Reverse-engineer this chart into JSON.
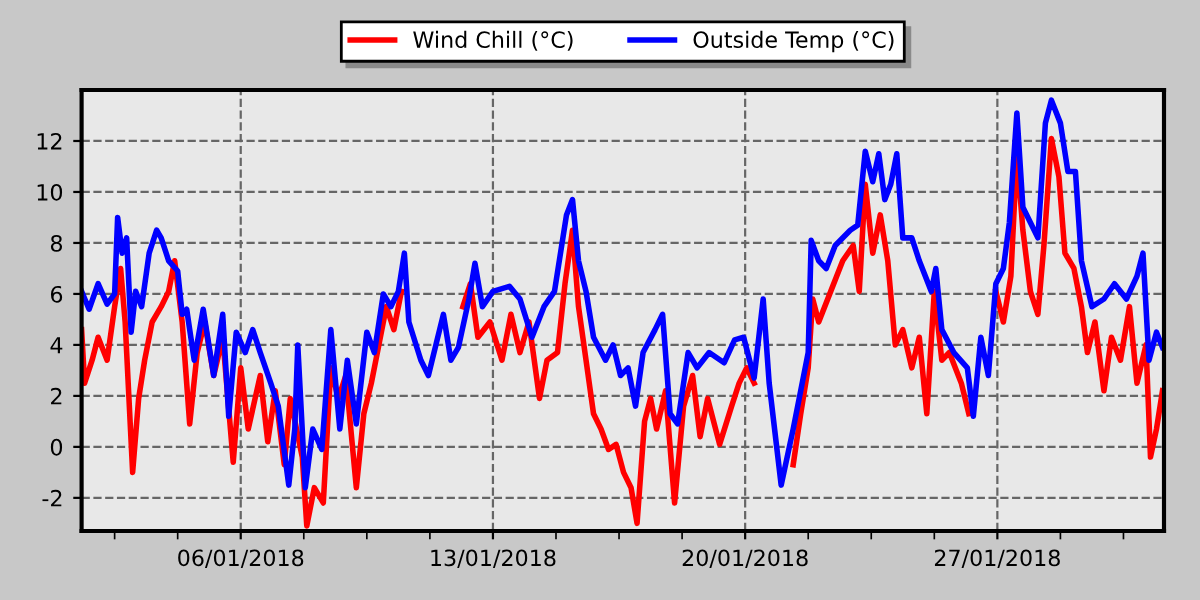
{
  "chart_data": {
    "type": "line",
    "xlim": [
      "2018-01-01T14:00",
      "2018-01-31T15:00"
    ],
    "xticks": [
      {
        "value": "2018-01-02T12:00",
        "label": null
      },
      {
        "value": "2018-01-04T06:00",
        "label": null
      },
      {
        "value": "2018-01-06",
        "label": "06/01/2018"
      },
      {
        "value": "2018-01-07T18:00",
        "label": null
      },
      {
        "value": "2018-01-09T12:00",
        "label": null
      },
      {
        "value": "2018-01-11T06:00",
        "label": null
      },
      {
        "value": "2018-01-13",
        "label": "13/01/2018"
      },
      {
        "value": "2018-01-14T18:00",
        "label": null
      },
      {
        "value": "2018-01-16T12:00",
        "label": null
      },
      {
        "value": "2018-01-18T06:00",
        "label": null
      },
      {
        "value": "2018-01-20",
        "label": "20/01/2018"
      },
      {
        "value": "2018-01-21T18:00",
        "label": null
      },
      {
        "value": "2018-01-23T12:00",
        "label": null
      },
      {
        "value": "2018-01-25T06:00",
        "label": null
      },
      {
        "value": "2018-01-27",
        "label": "27/01/2018"
      },
      {
        "value": "2018-01-28T18:00",
        "label": null
      },
      {
        "value": "2018-01-30T12:00",
        "label": null
      }
    ],
    "ylim": [
      -3.3,
      14
    ],
    "yticks": [
      -2,
      0,
      2,
      4,
      6,
      8,
      10,
      12
    ],
    "grid": true,
    "legend": "top",
    "marker": "none",
    "line_style": "solid",
    "series": [
      {
        "name": "Wind Chill (°C)",
        "color": "#ff0000",
        "x": [
          "2018-01-01T14:00",
          "2018-01-01T16:00",
          "2018-01-01T21:00",
          "2018-01-02T01:00",
          "2018-01-02T07:00",
          "2018-01-02T12:00",
          "2018-01-02T16:00",
          "2018-01-02T19:00",
          "2018-01-03T00:00",
          "2018-01-03T04:00",
          "2018-01-03T08:00",
          "2018-01-03T13:00",
          "2018-01-03T19:00",
          "2018-01-04T00:00",
          "2018-01-04T04:00",
          "2018-01-04T09:00",
          "2018-01-04T14:00",
          "2018-01-04T19:00",
          "2018-01-05T00:00",
          "2018-01-05T06:00",
          "2018-01-05T12:00",
          "2018-01-05T19:00",
          "2018-01-06T00:00",
          "2018-01-06T05:00",
          "2018-01-06T13:00",
          "2018-01-06T18:00",
          "2018-01-06T23:00",
          "2018-01-07T05:00",
          "2018-01-07T09:00",
          "2018-01-07T17:00",
          "2018-01-07T20:00",
          "2018-01-08T01:00",
          "2018-01-08T07:00",
          "2018-01-08T12:00",
          "2018-01-08T17:00",
          "2018-01-08T22:00",
          "2018-01-09T05:00",
          "2018-01-09T10:00",
          "2018-01-09T15:00",
          "2018-01-09T20:00",
          "2018-01-10T01:00",
          "2018-01-10T06:00",
          "2018-01-10T11:00",
          "2018-01-11T12:00",
          "2018-01-12T04:00",
          "2018-01-12T09:00",
          "2018-01-12T14:00",
          "2018-01-12T22:00",
          "2018-01-13T06:00",
          "2018-01-13T12:00",
          "2018-01-13T18:00",
          "2018-01-14T00:00",
          "2018-01-14T07:00",
          "2018-01-14T12:00",
          "2018-01-14T19:00",
          "2018-01-15T00:00",
          "2018-01-15T05:00",
          "2018-01-15T09:00",
          "2018-01-15T14:00",
          "2018-01-15T19:00",
          "2018-01-16T00:00",
          "2018-01-16T05:00",
          "2018-01-16T10:00",
          "2018-01-16T15:00",
          "2018-01-16T20:00",
          "2018-01-17T00:00",
          "2018-01-17T05:00",
          "2018-01-17T09:00",
          "2018-01-17T13:00",
          "2018-01-17T19:00",
          "2018-01-18T01:00",
          "2018-01-18T07:00",
          "2018-01-18T13:00",
          "2018-01-18T18:00",
          "2018-01-18T23:00",
          "2018-01-19T07:00",
          "2018-01-19T15:00",
          "2018-01-19T20:00",
          "2018-01-20T01:00",
          "2018-01-20T06:00",
          "2018-01-20T19:00",
          "2018-01-21T08:00",
          "2018-01-21T13:00",
          "2018-01-21T18:00",
          "2018-01-21T21:00",
          "2018-01-22T01:00",
          "2018-01-22T09:00",
          "2018-01-22T17:00",
          "2018-01-23T00:00",
          "2018-01-23T04:00",
          "2018-01-23T08:00",
          "2018-01-23T13:00",
          "2018-01-23T18:00",
          "2018-01-23T23:00",
          "2018-01-24T04:00",
          "2018-01-24T09:00",
          "2018-01-24T15:00",
          "2018-01-24T20:00",
          "2018-01-25T01:00",
          "2018-01-25T06:00",
          "2018-01-25T11:00",
          "2018-01-25T16:00",
          "2018-01-26T00:00",
          "2018-01-26T05:00",
          "2018-01-26T14:00",
          "2018-01-26T23:00",
          "2018-01-27T04:00",
          "2018-01-27T09:00",
          "2018-01-27T13:00",
          "2018-01-27T17:00",
          "2018-01-27T22:00",
          "2018-01-28T03:00",
          "2018-01-28T07:00",
          "2018-01-28T12:00",
          "2018-01-28T17:00",
          "2018-01-28T21:00",
          "2018-01-29T03:00",
          "2018-01-29T08:00",
          "2018-01-29T12:00",
          "2018-01-29T17:00",
          "2018-01-29T23:00",
          "2018-01-30T04:00",
          "2018-01-30T10:00",
          "2018-01-30T16:00",
          "2018-01-30T21:00",
          "2018-01-31T03:00",
          "2018-01-31T06:00",
          "2018-01-31T10:00",
          "2018-01-31T14:00"
        ],
        "values": [
          4.6,
          2.5,
          3.4,
          4.3,
          3.4,
          5.5,
          7.0,
          4.9,
          -1.0,
          1.9,
          3.4,
          4.9,
          5.5,
          6.1,
          7.3,
          4.9,
          0.9,
          3.7,
          4.9,
          2.8,
          4.3,
          -0.6,
          3.1,
          0.7,
          2.8,
          0.2,
          2.2,
          -0.7,
          1.9,
          -0.4,
          -3.1,
          -1.6,
          -2.2,
          3.1,
          1.9,
          2.8,
          -1.6,
          1.3,
          2.5,
          4.0,
          5.5,
          4.6,
          6.1,
          null,
          5.5,
          6.4,
          4.3,
          4.9,
          3.4,
          5.2,
          3.7,
          4.9,
          1.9,
          3.4,
          3.7,
          6.4,
          8.5,
          5.5,
          3.4,
          1.3,
          0.7,
          -0.1,
          0.1,
          -1.0,
          -1.6,
          -3.0,
          1.0,
          1.9,
          0.7,
          2.2,
          -2.2,
          1.6,
          2.8,
          0.4,
          1.9,
          0.1,
          1.6,
          2.5,
          3.1,
          2.5,
          null,
          -0.7,
          1.3,
          3.1,
          5.8,
          4.9,
          6.1,
          7.3,
          7.9,
          6.1,
          10.3,
          7.6,
          9.1,
          7.3,
          4.0,
          4.6,
          3.1,
          4.3,
          1.3,
          6.1,
          3.4,
          3.7,
          2.5,
          1.3,
          null,
          6.1,
          4.9,
          6.7,
          11.5,
          8.5,
          6.1,
          5.2,
          7.9,
          12.1,
          10.6,
          7.6,
          7.0,
          5.5,
          3.7,
          4.9,
          2.2,
          4.3,
          3.4,
          5.5,
          2.5,
          4.0,
          -0.4,
          0.7,
          2.2
        ]
      },
      {
        "name": "Outside Temp (°C)",
        "color": "#0000ff",
        "x": [
          "2018-01-01T14:00",
          "2018-01-01T19:00",
          "2018-01-02T01:00",
          "2018-01-02T07:00",
          "2018-01-02T12:00",
          "2018-01-02T14:00",
          "2018-01-02T17:00",
          "2018-01-02T20:00",
          "2018-01-02T23:00",
          "2018-01-03T02:00",
          "2018-01-03T06:00",
          "2018-01-03T11:00",
          "2018-01-03T16:00",
          "2018-01-03T19:00",
          "2018-01-04T00:00",
          "2018-01-04T06:00",
          "2018-01-04T09:00",
          "2018-01-04T12:00",
          "2018-01-04T17:00",
          "2018-01-04T23:00",
          "2018-01-05T06:00",
          "2018-01-05T12:00",
          "2018-01-05T16:00",
          "2018-01-05T21:00",
          "2018-01-06T03:00",
          "2018-01-06T08:00",
          "2018-01-06T13:00",
          "2018-01-06T20:00",
          "2018-01-07T01:00",
          "2018-01-07T08:00",
          "2018-01-07T12:00",
          "2018-01-07T14:00",
          "2018-01-07T19:00",
          "2018-01-08T00:00",
          "2018-01-08T06:00",
          "2018-01-08T12:00",
          "2018-01-08T18:00",
          "2018-01-08T23:00",
          "2018-01-09T05:00",
          "2018-01-09T12:00",
          "2018-01-09T17:00",
          "2018-01-09T23:00",
          "2018-01-10T04:00",
          "2018-01-10T09:00",
          "2018-01-10T13:00",
          "2018-01-10T16:00",
          "2018-01-11T00:00",
          "2018-01-11T05:00",
          "2018-01-11T10:00",
          "2018-01-11T15:00",
          "2018-01-11T20:00",
          "2018-01-12T01:00",
          "2018-01-12T08:00",
          "2018-01-12T12:00",
          "2018-01-12T17:00",
          "2018-01-13T00:00",
          "2018-01-13T11:00",
          "2018-01-13T18:00",
          "2018-01-14T02:00",
          "2018-01-14T10:00",
          "2018-01-14T17:00",
          "2018-01-15T01:00",
          "2018-01-15T05:00",
          "2018-01-15T09:00",
          "2018-01-15T14:00",
          "2018-01-15T19:00",
          "2018-01-16T03:00",
          "2018-01-16T08:00",
          "2018-01-16T13:00",
          "2018-01-16T18:00",
          "2018-01-16T23:00",
          "2018-01-17T04:00",
          "2018-01-17T12:00",
          "2018-01-17T17:00",
          "2018-01-17T22:00",
          "2018-01-18T03:00",
          "2018-01-18T10:00",
          "2018-01-18T16:00",
          "2018-01-19T00:00",
          "2018-01-19T10:00",
          "2018-01-19T17:00",
          "2018-01-19T23:00",
          "2018-01-20T06:00",
          "2018-01-20T12:00",
          "2018-01-20T16:00",
          "2018-01-21T00:00",
          "2018-01-21T08:00",
          "2018-01-21T13:00",
          "2018-01-21T18:00",
          "2018-01-21T20:00",
          "2018-01-22T01:00",
          "2018-01-22T06:00",
          "2018-01-22T12:00",
          "2018-01-22T22:00",
          "2018-01-23T03:00",
          "2018-01-23T08:00",
          "2018-01-23T13:00",
          "2018-01-23T17:00",
          "2018-01-23T21:00",
          "2018-01-24T01:00",
          "2018-01-24T05:00",
          "2018-01-24T09:00",
          "2018-01-24T15:00",
          "2018-01-24T20:00",
          "2018-01-25T04:00",
          "2018-01-25T07:00",
          "2018-01-25T11:00",
          "2018-01-25T19:00",
          "2018-01-26T04:00",
          "2018-01-26T08:00",
          "2018-01-26T13:00",
          "2018-01-26T18:00",
          "2018-01-26T23:00",
          "2018-01-27T04:00",
          "2018-01-27T08:00",
          "2018-01-27T13:00",
          "2018-01-27T17:00",
          "2018-01-27T22:00",
          "2018-01-28T03:00",
          "2018-01-28T08:00",
          "2018-01-28T12:00",
          "2018-01-28T18:00",
          "2018-01-28T23:00",
          "2018-01-29T04:00",
          "2018-01-29T08:00",
          "2018-01-29T15:00",
          "2018-01-29T23:00",
          "2018-01-30T06:00",
          "2018-01-30T14:00",
          "2018-01-30T21:00",
          "2018-01-31T01:00",
          "2018-01-31T05:00",
          "2018-01-31T10:00",
          "2018-01-31T14:00"
        ],
        "values": [
          6.1,
          5.4,
          6.4,
          5.6,
          6.0,
          9.0,
          7.6,
          8.2,
          4.5,
          6.1,
          5.5,
          7.6,
          8.5,
          8.2,
          7.3,
          6.9,
          5.2,
          5.4,
          3.4,
          5.4,
          2.8,
          5.2,
          1.2,
          4.5,
          3.7,
          4.6,
          3.7,
          2.5,
          1.6,
          -1.5,
          0.7,
          4.0,
          -1.6,
          0.7,
          -0.1,
          4.6,
          0.7,
          3.4,
          0.9,
          4.5,
          3.7,
          6.0,
          5.5,
          6.1,
          7.6,
          4.9,
          3.4,
          2.8,
          4.0,
          5.2,
          3.4,
          3.9,
          5.8,
          7.2,
          5.5,
          6.1,
          6.3,
          5.8,
          4.3,
          5.5,
          6.1,
          9.1,
          9.7,
          7.3,
          6.1,
          4.3,
          3.4,
          4.0,
          2.8,
          3.1,
          1.6,
          3.7,
          4.6,
          5.2,
          1.3,
          0.9,
          3.7,
          3.1,
          3.7,
          3.3,
          4.2,
          4.3,
          2.7,
          5.8,
          2.5,
          -1.5,
          0.7,
          2.2,
          3.7,
          8.1,
          7.3,
          7.0,
          7.9,
          8.5,
          8.7,
          11.6,
          10.4,
          11.5,
          9.7,
          10.3,
          11.5,
          8.2,
          8.2,
          7.3,
          6.1,
          7.0,
          4.6,
          3.7,
          3.1,
          1.2,
          4.3,
          2.8,
          6.4,
          7.0,
          8.8,
          13.1,
          9.4,
          8.8,
          8.2,
          12.7,
          13.6,
          12.7,
          10.8,
          10.8,
          7.3,
          5.5,
          5.8,
          6.4,
          5.8,
          6.7,
          7.6,
          3.4,
          4.5,
          3.9
        ]
      }
    ]
  }
}
